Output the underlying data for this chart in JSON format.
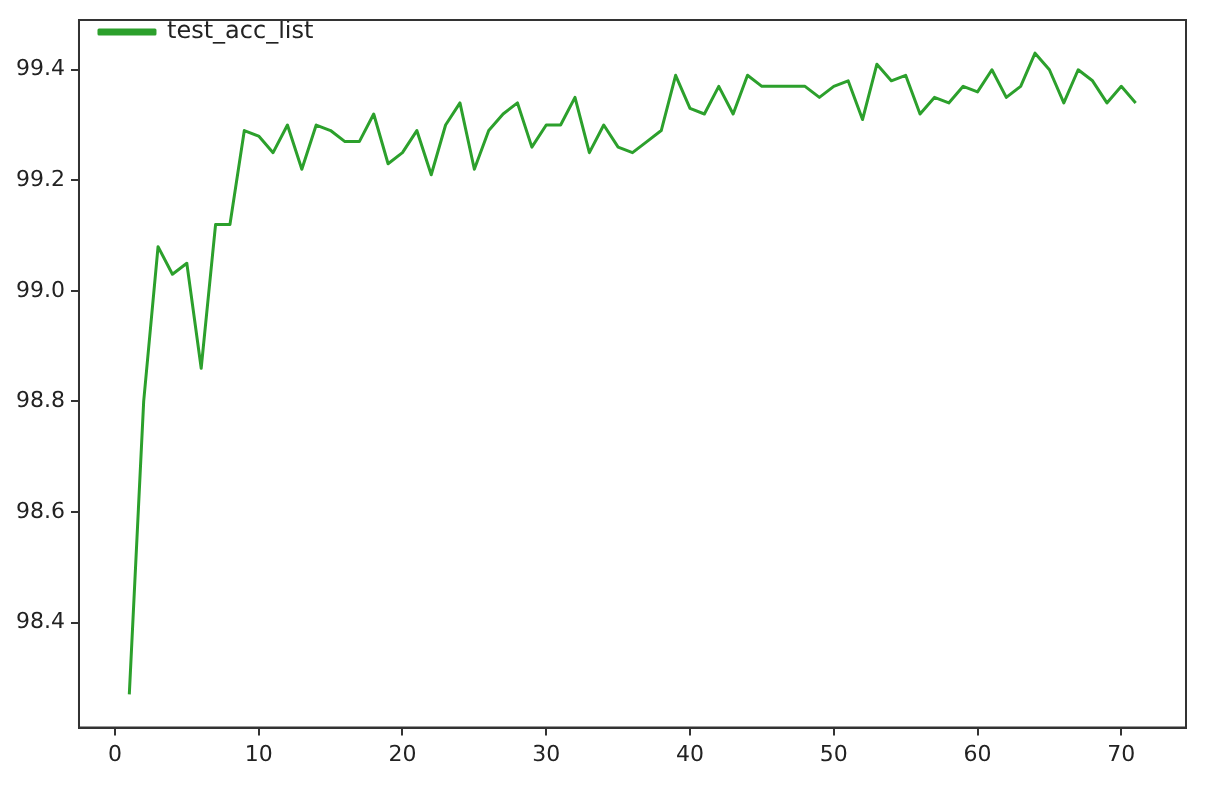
{
  "chart_data": {
    "type": "line",
    "x": [
      1,
      2,
      3,
      4,
      5,
      6,
      7,
      8,
      9,
      10,
      11,
      12,
      13,
      14,
      15,
      16,
      17,
      18,
      19,
      20,
      21,
      22,
      23,
      24,
      25,
      26,
      27,
      28,
      29,
      30,
      31,
      32,
      33,
      34,
      35,
      36,
      37,
      38,
      39,
      40,
      41,
      42,
      43,
      44,
      45,
      46,
      47,
      48,
      49,
      50,
      51,
      52,
      53,
      54,
      55,
      56,
      57,
      58,
      59,
      60,
      61,
      62,
      63,
      64,
      65,
      66,
      67,
      68,
      69,
      70,
      71
    ],
    "series": [
      {
        "name": "test_acc_list",
        "color": "#2ca02c",
        "values": [
          98.27,
          98.8,
          99.08,
          99.03,
          99.05,
          98.86,
          99.12,
          99.12,
          99.29,
          99.28,
          99.25,
          99.3,
          99.22,
          99.3,
          99.29,
          99.27,
          99.27,
          99.32,
          99.23,
          99.25,
          99.29,
          99.21,
          99.3,
          99.34,
          99.22,
          99.29,
          99.32,
          99.34,
          99.26,
          99.3,
          99.3,
          99.35,
          99.25,
          99.3,
          99.26,
          99.25,
          99.27,
          99.29,
          99.39,
          99.33,
          99.32,
          99.37,
          99.32,
          99.39,
          99.37,
          99.37,
          99.37,
          99.37,
          99.35,
          99.37,
          99.38,
          99.31,
          99.41,
          99.38,
          99.39,
          99.32,
          99.35,
          99.34,
          99.37,
          99.36,
          99.4,
          99.35,
          99.37,
          99.43,
          99.4,
          99.34,
          99.4,
          99.38,
          99.34,
          99.37,
          99.34
        ]
      }
    ],
    "xlim": [
      -2.5,
      74.5
    ],
    "xticks": [
      0,
      10,
      20,
      30,
      40,
      50,
      60,
      70
    ],
    "ylim": [
      98.21,
      99.49
    ],
    "yticks": [
      {
        "value": 98.4,
        "label": "98.4"
      },
      {
        "value": 98.6,
        "label": "98.6"
      },
      {
        "value": 98.8,
        "label": "98.8"
      },
      {
        "value": 99.0,
        "label": "99.0"
      },
      {
        "value": 99.2,
        "label": "99.2"
      },
      {
        "value": 99.4,
        "label": "99.4"
      }
    ],
    "grid": false,
    "legend": "top left",
    "marker": "none",
    "line_style": "solid"
  }
}
